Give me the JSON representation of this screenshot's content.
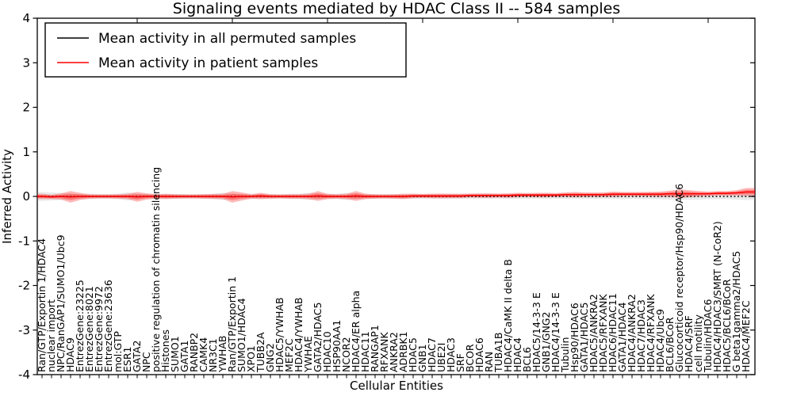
{
  "title": "Signaling events mediated by HDAC Class II -- 584 samples",
  "chart_data": {
    "type": "line",
    "title": "Signaling events mediated by HDAC Class II -- 584 samples",
    "xlabel": "Cellular Entities",
    "ylabel": "Inferred Activity",
    "ylim": [
      -4,
      4
    ],
    "yticks": [
      "4",
      "3",
      "2",
      "1",
      "0",
      "-1",
      "-2",
      "-3",
      "-4"
    ],
    "grid": false,
    "legend_position": "upper left",
    "categories": [
      "Ran/GTP/Exportin 1/HDAC4",
      "nuclear import",
      "NPC/RanGAP1/SUMO1/Ubc9",
      "HDAC9",
      "EntrezGene:23225",
      "EntrezGene:8021",
      "EntrezGene:9972",
      "EntrezGene:23636",
      "mol:GTP",
      "ESR1",
      "GATA2",
      "NPC",
      "positive regulation of chromatin silencing",
      "Histones",
      "SUMO1",
      "GATA1",
      "RANBP2",
      "CAMK4",
      "NR3C1",
      "YWHAB",
      "Ran/GTP/Exportin 1",
      "SUMO1/HDAC4",
      "XPO1",
      "TUBB2A",
      "GNG2",
      "HDAC5/YWHAB",
      "MEF2C",
      "HDAC4/YWHAB",
      "YWHAE",
      "GATA2/HDAC5",
      "HDAC10",
      "HSP90AA1",
      "NCOR2",
      "HDAC4/ER alpha",
      "HDAC11",
      "RANGAP1",
      "RFXANK",
      "ANKRA2",
      "ADRBK1",
      "HDAC5",
      "GNB1",
      "HDAC7",
      "UBE2I",
      "HDAC3",
      "SRF",
      "BCOR",
      "HDAC6",
      "RAN",
      "TUBA1B",
      "HDAC4/CaMK II delta B",
      "HDAC4",
      "BCL6",
      "HDAC5/14-3-3 E",
      "GNB1/GNG2",
      "HDAC4/14-3-3 E",
      "Tubulin",
      "Hsp90/HDAC6",
      "GATA1/HDAC5",
      "HDAC5/ANKRA2",
      "HDAC5/RFXANK",
      "HDAC6/HDAC11",
      "GATA1/HDAC4",
      "HDAC4/ANKRA2",
      "HDAC7/HDAC3",
      "HDAC4/RFXANK",
      "HDAC4/Ubc9",
      "BCL6/BCoR",
      "Glucocorticoid receptor/Hsp90/HDAC6",
      "HDAC4/SRF",
      "cell motility",
      "Tubulin/HDAC6",
      "HDAC4/HDAC3/SMRT (N-CoR2)",
      "HDAC5/BCL6/BCoR",
      "G beta1gamma2/HDAC5",
      "HDAC4/MEF2C"
    ],
    "series": [
      {
        "name": "Mean activity in all permuted samples",
        "color": "#000000",
        "style": "dotted",
        "band_color": "#999999",
        "values": [
          0,
          0,
          0,
          0,
          0,
          0,
          0,
          0,
          0,
          0,
          0,
          0,
          0,
          0,
          0,
          0,
          0,
          0,
          0,
          0,
          0,
          0,
          0,
          0,
          0,
          0,
          0,
          0,
          0,
          0,
          0,
          0,
          0,
          0,
          0,
          0,
          0,
          0,
          0,
          0,
          0,
          0,
          0,
          0,
          0,
          0,
          0,
          0,
          0,
          0,
          0,
          0,
          0,
          0,
          0,
          0,
          0,
          0,
          0,
          0,
          0,
          0,
          0,
          0,
          0,
          0,
          0,
          0,
          0,
          0,
          0,
          0,
          0,
          0,
          0
        ],
        "band_halfwidth": [
          0.1,
          0.09,
          0.08,
          0.06,
          0.055,
          0.06,
          0.055,
          0.055,
          0.06,
          0.09,
          0.06,
          0.055,
          0.06,
          0.055,
          0.055,
          0.055,
          0.05,
          0.055,
          0.06,
          0.08,
          0.06,
          0.055,
          0.06,
          0.055,
          0.055,
          0.05,
          0.055,
          0.06,
          0.08,
          0.06,
          0.055,
          0.06,
          0.08,
          0.06,
          0.055,
          0.05,
          0.055,
          0.055,
          0.05,
          0.055,
          0.05,
          0.055,
          0.05,
          0.055,
          0.05,
          0.055,
          0.05,
          0.055,
          0.05,
          0.055,
          0.05,
          0.055,
          0.05,
          0.055,
          0.05,
          0.055,
          0.055,
          0.05,
          0.055,
          0.05,
          0.055,
          0.06,
          0.055,
          0.06,
          0.06,
          0.065,
          0.07,
          0.08,
          0.075,
          0.07,
          0.06,
          0.06,
          0.06,
          0.07,
          0.08
        ]
      },
      {
        "name": "Mean activity in patient samples",
        "color": "#ff0000",
        "style": "solid",
        "band_color": "#ff0000",
        "values": [
          0,
          -0.01,
          0,
          -0.01,
          0,
          0,
          0,
          0,
          0,
          0,
          -0.01,
          0,
          0,
          0,
          0,
          0,
          0,
          0,
          0,
          0,
          -0.01,
          0,
          0,
          0.01,
          0,
          0,
          0,
          0,
          0,
          0.01,
          0,
          0,
          0,
          0.01,
          0,
          0,
          0,
          0,
          0,
          0.01,
          0.01,
          0.01,
          0.01,
          0.01,
          0.01,
          0.02,
          0.02,
          0.02,
          0.02,
          0.02,
          0.03,
          0.03,
          0.03,
          0.03,
          0.03,
          0.04,
          0.04,
          0.04,
          0.04,
          0.04,
          0.05,
          0.05,
          0.05,
          0.05,
          0.05,
          0.05,
          0.06,
          0.06,
          0.06,
          0.06,
          0.06,
          0.07,
          0.07,
          0.08,
          0.1
        ],
        "band_halfwidth": [
          0.06,
          0.05,
          0.07,
          0.13,
          0.08,
          0.05,
          0.045,
          0.045,
          0.05,
          0.06,
          0.11,
          0.07,
          0.05,
          0.06,
          0.05,
          0.045,
          0.045,
          0.05,
          0.055,
          0.06,
          0.13,
          0.09,
          0.05,
          0.07,
          0.05,
          0.045,
          0.05,
          0.05,
          0.06,
          0.11,
          0.06,
          0.05,
          0.06,
          0.11,
          0.06,
          0.05,
          0.045,
          0.05,
          0.06,
          0.05,
          0.045,
          0.05,
          0.055,
          0.05,
          0.05,
          0.045,
          0.05,
          0.05,
          0.045,
          0.05,
          0.05,
          0.045,
          0.05,
          0.05,
          0.045,
          0.05,
          0.06,
          0.05,
          0.05,
          0.05,
          0.06,
          0.05,
          0.05,
          0.05,
          0.055,
          0.06,
          0.07,
          0.1,
          0.08,
          0.06,
          0.05,
          0.05,
          0.05,
          0.06,
          0.09
        ]
      }
    ]
  }
}
